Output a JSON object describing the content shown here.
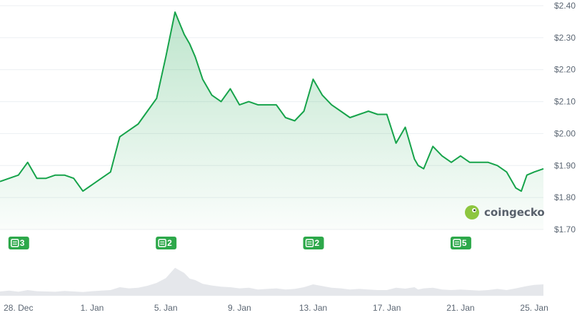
{
  "chart_data": {
    "type": "area",
    "title": "",
    "xlabel": "",
    "ylabel": "",
    "ylim": [
      1.7,
      2.4
    ],
    "y_ticks": [
      "$2.40",
      "$2.30",
      "$2.20",
      "$2.10",
      "$2.00",
      "$1.90",
      "$1.80",
      "$1.70"
    ],
    "y_tick_values": [
      2.4,
      2.3,
      2.2,
      2.1,
      2.0,
      1.9,
      1.8,
      1.7
    ],
    "x_ticks": [
      "28. Dec",
      "1. Jan",
      "5. Jan",
      "9. Jan",
      "13. Jan",
      "17. Jan",
      "21. Jan",
      "25. Jan"
    ],
    "x_tick_days": [
      0,
      4,
      8,
      12,
      16,
      20,
      24,
      28
    ],
    "x_range_days": [
      -1.0,
      28.5
    ],
    "x": [
      -1.0,
      -0.5,
      0,
      0.5,
      1.0,
      1.5,
      2.0,
      2.5,
      3.0,
      3.5,
      4.0,
      4.5,
      5.0,
      5.5,
      6.0,
      6.5,
      7.0,
      7.5,
      8.0,
      8.5,
      9.0,
      9.3,
      9.6,
      10.0,
      10.5,
      11.0,
      11.5,
      12.0,
      12.5,
      13.0,
      13.5,
      14.0,
      14.5,
      15.0,
      15.5,
      16.0,
      16.5,
      17.0,
      17.5,
      18.0,
      18.5,
      19.0,
      19.5,
      20.0,
      20.5,
      21.0,
      21.5,
      21.7,
      22.0,
      22.5,
      23.0,
      23.5,
      24.0,
      24.5,
      25.0,
      25.5,
      26.0,
      26.5,
      27.0,
      27.3,
      27.6,
      28.0,
      28.5
    ],
    "values": [
      1.85,
      1.86,
      1.87,
      1.91,
      1.86,
      1.86,
      1.87,
      1.87,
      1.86,
      1.82,
      1.84,
      1.86,
      1.88,
      1.99,
      2.01,
      2.03,
      2.07,
      2.11,
      2.24,
      2.38,
      2.31,
      2.28,
      2.24,
      2.17,
      2.12,
      2.1,
      2.14,
      2.09,
      2.1,
      2.09,
      2.09,
      2.09,
      2.05,
      2.04,
      2.07,
      2.17,
      2.12,
      2.09,
      2.07,
      2.05,
      2.06,
      2.07,
      2.06,
      2.06,
      1.97,
      2.02,
      1.92,
      1.9,
      1.89,
      1.96,
      1.93,
      1.91,
      1.93,
      1.91,
      1.91,
      1.91,
      1.9,
      1.88,
      1.83,
      1.82,
      1.87,
      1.88,
      1.89
    ],
    "volume": [
      0.15,
      0.18,
      0.14,
      0.2,
      0.16,
      0.15,
      0.14,
      0.17,
      0.15,
      0.13,
      0.16,
      0.18,
      0.2,
      0.3,
      0.26,
      0.28,
      0.35,
      0.45,
      0.62,
      0.98,
      0.8,
      0.6,
      0.55,
      0.42,
      0.36,
      0.32,
      0.3,
      0.26,
      0.28,
      0.22,
      0.24,
      0.26,
      0.22,
      0.24,
      0.3,
      0.4,
      0.34,
      0.28,
      0.26,
      0.22,
      0.24,
      0.22,
      0.2,
      0.2,
      0.28,
      0.25,
      0.3,
      0.22,
      0.26,
      0.28,
      0.22,
      0.2,
      0.22,
      0.2,
      0.18,
      0.2,
      0.24,
      0.2,
      0.26,
      0.3,
      0.34,
      0.38,
      0.4
    ],
    "grid": true,
    "line_color": "#16a34a",
    "fill_color": "#16a34a",
    "volume_color": "#e5e7eb",
    "news_markers": [
      {
        "day": 0.0,
        "count": "3"
      },
      {
        "day": 8.0,
        "count": "2"
      },
      {
        "day": 16.0,
        "count": "2"
      },
      {
        "day": 24.0,
        "count": "5"
      }
    ],
    "marker_color": "#2da84a",
    "watermark": "coingecko"
  }
}
